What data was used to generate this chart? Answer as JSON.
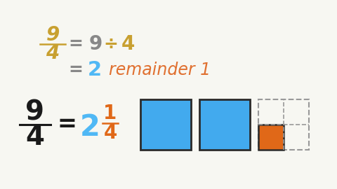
{
  "bg_color": "#f7f7f2",
  "fraction_color": "#c8a030",
  "equals_color": "#888888",
  "blue_color": "#42aaee",
  "orange_color": "#e06818",
  "remainder_orange": "#e07030",
  "two_color": "#50b8f5",
  "black_color": "#1a1a1a",
  "box_blue": "#42aaee",
  "box_outline": "#2a2a2a",
  "box_orange": "#e06818",
  "box_dashed_color": "#999999"
}
